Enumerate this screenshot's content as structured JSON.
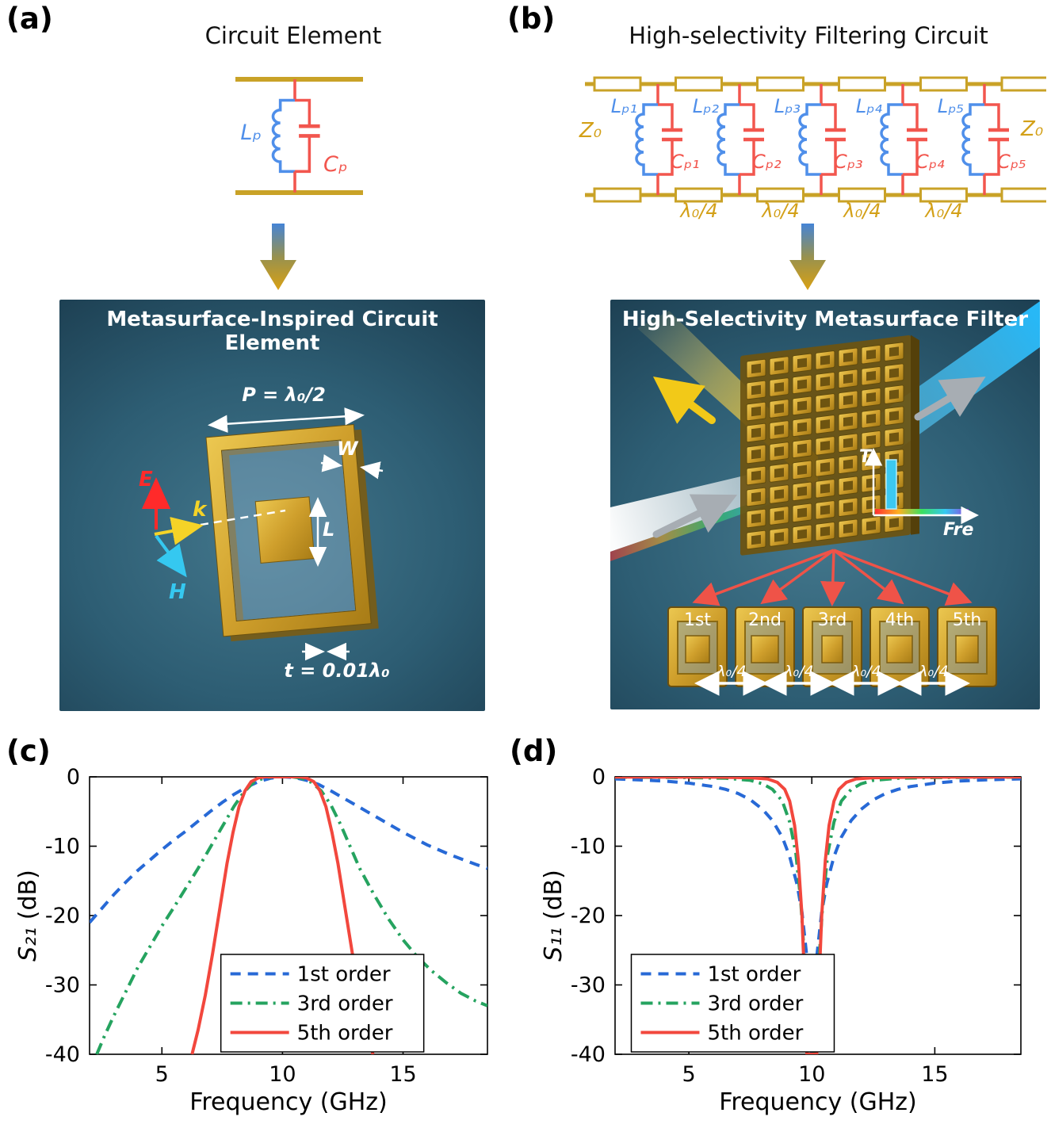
{
  "panels": {
    "a": {
      "label": "(a)",
      "title": "Circuit Element",
      "circuit": {
        "inductor": "Lₚ",
        "capacitor": "Cₚ"
      },
      "render": {
        "title": "Metasurface-Inspired Circuit Element",
        "period": "P = λ₀/2",
        "width": "W",
        "length": "L",
        "thickness": "t = 0.01λ₀",
        "e_field": "E",
        "wave_vector": "k",
        "h_field": "H"
      }
    },
    "b": {
      "label": "(b)",
      "title": "High-selectivity Filtering Circuit",
      "circuit": {
        "impedance_left": "Z₀",
        "impedance_right": "Z₀",
        "inductors": [
          "Lₚ₁",
          "Lₚ₂",
          "Lₚ₃",
          "Lₚ₄",
          "Lₚ₅"
        ],
        "capacitors": [
          "Cₚ₁",
          "Cₚ₂",
          "Cₚ₃",
          "Cₚ₄",
          "Cₚ₅"
        ],
        "sections": [
          "λ₀/4",
          "λ₀/4",
          "λ₀/4",
          "λ₀/4"
        ]
      },
      "render": {
        "title": "High-Selectivity Metasurface Filter",
        "inset_y": "T",
        "inset_x": "Fre",
        "cells": [
          "1st",
          "2nd",
          "3rd",
          "4th",
          "5th"
        ],
        "spacings": [
          "λ₀/4",
          "λ₀/4",
          "λ₀/4",
          "λ₀/4"
        ]
      }
    },
    "c": {
      "label": "(c)"
    },
    "d": {
      "label": "(d)"
    }
  },
  "chart_data": [
    {
      "id": "chart-c",
      "type": "line",
      "title": "",
      "xlabel": "Frequency (GHz)",
      "ylabel": "S₂₁ (dB)",
      "xlim": [
        2,
        18.5
      ],
      "ylim": [
        -40,
        0
      ],
      "xticks": [
        5,
        10,
        15
      ],
      "yticks": [
        0,
        -10,
        -20,
        -30,
        -40
      ],
      "grid": false,
      "legend": {
        "x": 0.33,
        "y": 0.64
      },
      "series": [
        {
          "name": "1st order",
          "color": "#2769d6",
          "dash": "dashed",
          "points": [
            [
              2,
              -21
            ],
            [
              2.5,
              -19
            ],
            [
              3,
              -17
            ],
            [
              3.5,
              -15.2
            ],
            [
              4,
              -13.5
            ],
            [
              4.5,
              -12
            ],
            [
              5,
              -10.5
            ],
            [
              5.5,
              -9.1
            ],
            [
              6,
              -7.8
            ],
            [
              6.5,
              -6.4
            ],
            [
              7,
              -5
            ],
            [
              7.5,
              -3.7
            ],
            [
              8,
              -2.5
            ],
            [
              8.5,
              -1.5
            ],
            [
              9,
              -0.7
            ],
            [
              9.5,
              -0.2
            ],
            [
              10,
              0
            ],
            [
              10.5,
              -0.1
            ],
            [
              11,
              -0.5
            ],
            [
              11.5,
              -1.1
            ],
            [
              12,
              -2
            ],
            [
              12.5,
              -3
            ],
            [
              13,
              -4
            ],
            [
              13.5,
              -5
            ],
            [
              14,
              -6
            ],
            [
              15,
              -8
            ],
            [
              16,
              -9.8
            ],
            [
              17,
              -11.3
            ],
            [
              18,
              -12.6
            ],
            [
              18.5,
              -13.2
            ]
          ]
        },
        {
          "name": "3rd order",
          "color": "#25a35f",
          "dash": "dashdot",
          "points": [
            [
              2.3,
              -40
            ],
            [
              2.6,
              -37.5
            ],
            [
              3,
              -34.5
            ],
            [
              3.5,
              -31
            ],
            [
              4,
              -27.5
            ],
            [
              4.5,
              -24.5
            ],
            [
              5,
              -21.5
            ],
            [
              5.5,
              -18.8
            ],
            [
              6,
              -16
            ],
            [
              6.5,
              -13.2
            ],
            [
              7,
              -10.2
            ],
            [
              7.5,
              -7.2
            ],
            [
              8,
              -4.2
            ],
            [
              8.4,
              -2.2
            ],
            [
              8.8,
              -0.8
            ],
            [
              9.2,
              -0.2
            ],
            [
              9.6,
              0
            ],
            [
              10.4,
              0
            ],
            [
              10.8,
              -0.2
            ],
            [
              11.2,
              -0.8
            ],
            [
              11.6,
              -2
            ],
            [
              12,
              -4
            ],
            [
              12.4,
              -6.8
            ],
            [
              12.8,
              -10
            ],
            [
              13.2,
              -13.2
            ],
            [
              13.8,
              -17
            ],
            [
              14.4,
              -20.5
            ],
            [
              15,
              -23.5
            ],
            [
              15.6,
              -26
            ],
            [
              16.2,
              -28
            ],
            [
              16.8,
              -29.7
            ],
            [
              17.4,
              -31.2
            ],
            [
              18,
              -32.3
            ],
            [
              18.5,
              -33
            ]
          ]
        },
        {
          "name": "5th order",
          "color": "#f2473d",
          "dash": "solid",
          "points": [
            [
              6.25,
              -40
            ],
            [
              6.5,
              -36.5
            ],
            [
              6.8,
              -31.5
            ],
            [
              7.1,
              -25.5
            ],
            [
              7.4,
              -19
            ],
            [
              7.7,
              -12.5
            ],
            [
              7.95,
              -8
            ],
            [
              8.2,
              -4.3
            ],
            [
              8.45,
              -2
            ],
            [
              8.7,
              -0.7
            ],
            [
              9,
              -0.15
            ],
            [
              9.3,
              0
            ],
            [
              10.7,
              0
            ],
            [
              11,
              -0.15
            ],
            [
              11.3,
              -0.7
            ],
            [
              11.55,
              -2
            ],
            [
              11.8,
              -4.3
            ],
            [
              12.05,
              -8
            ],
            [
              12.3,
              -12.5
            ],
            [
              12.6,
              -19
            ],
            [
              12.9,
              -25.5
            ],
            [
              13.2,
              -31.5
            ],
            [
              13.5,
              -36.5
            ],
            [
              13.75,
              -40
            ]
          ]
        }
      ]
    },
    {
      "id": "chart-d",
      "type": "line",
      "title": "",
      "xlabel": "Frequency (GHz)",
      "ylabel": "S₁₁ (dB)",
      "xlim": [
        2,
        18.5
      ],
      "ylim": [
        -40,
        0
      ],
      "xticks": [
        5,
        10,
        15
      ],
      "yticks": [
        0,
        -10,
        -20,
        -30,
        -40
      ],
      "grid": false,
      "legend": {
        "x": 0.04,
        "y": 0.64
      },
      "series": [
        {
          "name": "1st order",
          "color": "#2769d6",
          "dash": "dashed",
          "points": [
            [
              2,
              -0.3
            ],
            [
              3,
              -0.45
            ],
            [
              4,
              -0.6
            ],
            [
              5,
              -0.9
            ],
            [
              6,
              -1.4
            ],
            [
              6.5,
              -1.8
            ],
            [
              7,
              -2.4
            ],
            [
              7.5,
              -3.3
            ],
            [
              8,
              -4.7
            ],
            [
              8.4,
              -6.3
            ],
            [
              8.8,
              -8.7
            ],
            [
              9.1,
              -11.5
            ],
            [
              9.4,
              -15.5
            ],
            [
              9.6,
              -19.5
            ],
            [
              9.8,
              -26
            ],
            [
              9.95,
              -35
            ],
            [
              10,
              -40
            ],
            [
              10.05,
              -35
            ],
            [
              10.2,
              -26
            ],
            [
              10.4,
              -19.5
            ],
            [
              10.6,
              -15.5
            ],
            [
              10.9,
              -11.5
            ],
            [
              11.2,
              -8.7
            ],
            [
              11.6,
              -6.3
            ],
            [
              12,
              -4.7
            ],
            [
              12.5,
              -3.3
            ],
            [
              13,
              -2.4
            ],
            [
              13.5,
              -1.8
            ],
            [
              14,
              -1.4
            ],
            [
              15,
              -0.9
            ],
            [
              16,
              -0.6
            ],
            [
              17,
              -0.45
            ],
            [
              18.5,
              -0.3
            ]
          ]
        },
        {
          "name": "3rd order",
          "color": "#25a35f",
          "dash": "dashdot",
          "points": [
            [
              2,
              -0.05
            ],
            [
              5,
              -0.1
            ],
            [
              6.5,
              -0.2
            ],
            [
              7.5,
              -0.5
            ],
            [
              8,
              -1
            ],
            [
              8.4,
              -1.8
            ],
            [
              8.8,
              -3.5
            ],
            [
              9.1,
              -6.5
            ],
            [
              9.35,
              -11
            ],
            [
              9.55,
              -18
            ],
            [
              9.7,
              -26
            ],
            [
              9.82,
              -34
            ],
            [
              9.92,
              -40
            ],
            [
              10.08,
              -40
            ],
            [
              10.18,
              -34
            ],
            [
              10.3,
              -26
            ],
            [
              10.45,
              -18
            ],
            [
              10.65,
              -11
            ],
            [
              10.9,
              -6.5
            ],
            [
              11.2,
              -3.5
            ],
            [
              11.6,
              -1.8
            ],
            [
              12,
              -1
            ],
            [
              12.5,
              -0.5
            ],
            [
              13.5,
              -0.2
            ],
            [
              15,
              -0.1
            ],
            [
              18.5,
              -0.05
            ]
          ]
        },
        {
          "name": "5th order",
          "color": "#f2473d",
          "dash": "solid",
          "points": [
            [
              2,
              -0.02
            ],
            [
              6,
              -0.05
            ],
            [
              7.5,
              -0.12
            ],
            [
              8.2,
              -0.3
            ],
            [
              8.6,
              -0.8
            ],
            [
              8.9,
              -1.8
            ],
            [
              9.1,
              -3.5
            ],
            [
              9.3,
              -7
            ],
            [
              9.45,
              -12
            ],
            [
              9.6,
              -20
            ],
            [
              9.7,
              -29
            ],
            [
              9.8,
              -40
            ],
            [
              10.2,
              -40
            ],
            [
              10.3,
              -29
            ],
            [
              10.4,
              -20
            ],
            [
              10.55,
              -12
            ],
            [
              10.7,
              -7
            ],
            [
              10.9,
              -3.5
            ],
            [
              11.1,
              -1.8
            ],
            [
              11.4,
              -0.8
            ],
            [
              11.8,
              -0.3
            ],
            [
              12.5,
              -0.12
            ],
            [
              14,
              -0.05
            ],
            [
              18.5,
              -0.02
            ]
          ]
        }
      ]
    }
  ]
}
